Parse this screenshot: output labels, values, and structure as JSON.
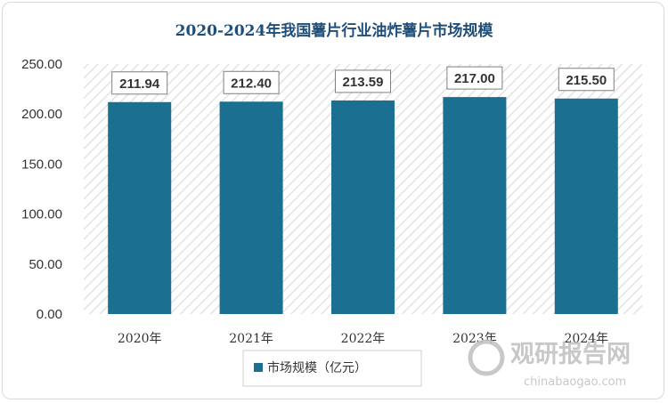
{
  "chart_data": {
    "type": "bar",
    "title": "2020-2024年我国薯片行业油炸薯片市场规模",
    "categories": [
      "2020年",
      "2021年",
      "2022年",
      "2023年",
      "2024年"
    ],
    "series": [
      {
        "name": "市场规模（亿元）",
        "values": [
          211.94,
          212.4,
          213.59,
          217.0,
          215.5
        ]
      }
    ],
    "data_labels": [
      "211.94",
      "212.40",
      "213.59",
      "217.00",
      "215.50"
    ],
    "y_ticks": [
      "0.00",
      "50.00",
      "100.00",
      "150.00",
      "200.00",
      "250.00"
    ],
    "ylim": [
      0,
      250
    ],
    "xlabel": "",
    "ylabel": "",
    "legend_position": "bottom",
    "grid": false,
    "background": "diagonal-hatch",
    "colors": {
      "bar": "#1b6f91",
      "title": "#1f4e79"
    }
  },
  "watermark": {
    "main": "观研报告网",
    "sub": "chinabaogao.com"
  }
}
